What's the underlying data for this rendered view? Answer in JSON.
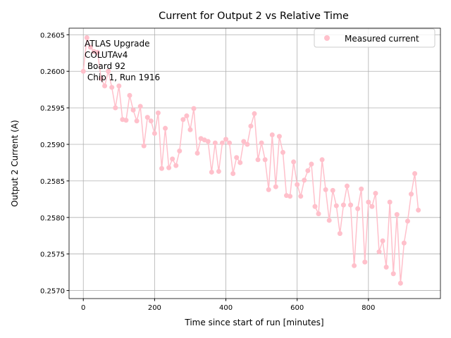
{
  "chart_data": {
    "type": "line",
    "title": "Current for Output 2 vs Relative Time",
    "x_label": "Time since start of run [minutes]",
    "y_label": "Output 2 Current (A)",
    "annotation": [
      "ATLAS Upgrade",
      "COLUTAv4",
      " Board 92",
      " Chip 1, Run 1916"
    ],
    "x": [
      0,
      10,
      20,
      30,
      40,
      50,
      60,
      70,
      80,
      90,
      100,
      110,
      120,
      130,
      140,
      150,
      160,
      170,
      180,
      190,
      200,
      210,
      220,
      230,
      240,
      250,
      260,
      270,
      280,
      290,
      300,
      310,
      320,
      330,
      340,
      350,
      360,
      370,
      380,
      390,
      400,
      410,
      420,
      430,
      440,
      450,
      460,
      470,
      480,
      490,
      500,
      510,
      520,
      530,
      540,
      550,
      560,
      570,
      580,
      590,
      600,
      610,
      620,
      630,
      640,
      650,
      660,
      670,
      680,
      690,
      700,
      710,
      720,
      730,
      740,
      750,
      760,
      770,
      780,
      790,
      800,
      810,
      820,
      830,
      840,
      850,
      860,
      870,
      880,
      890,
      900,
      910,
      920,
      930,
      940
    ],
    "series": [
      {
        "name": "Measured current",
        "color": "#ffc0cb",
        "values": [
          0.26,
          0.26046,
          0.26033,
          0.26027,
          0.26026,
          0.2599,
          0.2598,
          0.26,
          0.25978,
          0.2595,
          0.2598,
          0.25934,
          0.25933,
          0.25967,
          0.25947,
          0.25932,
          0.25952,
          0.25898,
          0.25937,
          0.25932,
          0.25915,
          0.25943,
          0.25867,
          0.25922,
          0.25868,
          0.2588,
          0.25871,
          0.25891,
          0.25934,
          0.25939,
          0.2592,
          0.25949,
          0.25888,
          0.25908,
          0.25906,
          0.25904,
          0.25862,
          0.25902,
          0.25863,
          0.25902,
          0.25907,
          0.25902,
          0.2586,
          0.25882,
          0.25875,
          0.25904,
          0.259,
          0.25925,
          0.25942,
          0.25879,
          0.25902,
          0.25879,
          0.25838,
          0.25913,
          0.25842,
          0.25911,
          0.25889,
          0.2583,
          0.25829,
          0.25876,
          0.25845,
          0.25829,
          0.25851,
          0.25864,
          0.25873,
          0.25815,
          0.25805,
          0.25879,
          0.25838,
          0.25796,
          0.25837,
          0.25816,
          0.25778,
          0.25817,
          0.25843,
          0.25817,
          0.25734,
          0.25812,
          0.25839,
          0.25739,
          0.25821,
          0.25815,
          0.25833,
          0.25753,
          0.25768,
          0.25732,
          0.25821,
          0.25723,
          0.25804,
          0.2571,
          0.25765,
          0.25795,
          0.25832,
          0.2586,
          0.2581
        ]
      }
    ],
    "xlim": [
      -40,
      1002
    ],
    "xticks": [
      0,
      200,
      400,
      600,
      800
    ],
    "ylim": [
      0.25689,
      0.26059
    ],
    "yticks": [
      {
        "value": 0.257,
        "label": "0.2570"
      },
      0.2575,
      {
        "value": 0.258,
        "label": "0.2580"
      },
      0.2585,
      {
        "value": 0.259,
        "label": "0.2590"
      },
      0.2595,
      {
        "value": 0.26,
        "label": "0.2600"
      },
      0.2605
    ],
    "grid": true,
    "legend": "upper right"
  }
}
